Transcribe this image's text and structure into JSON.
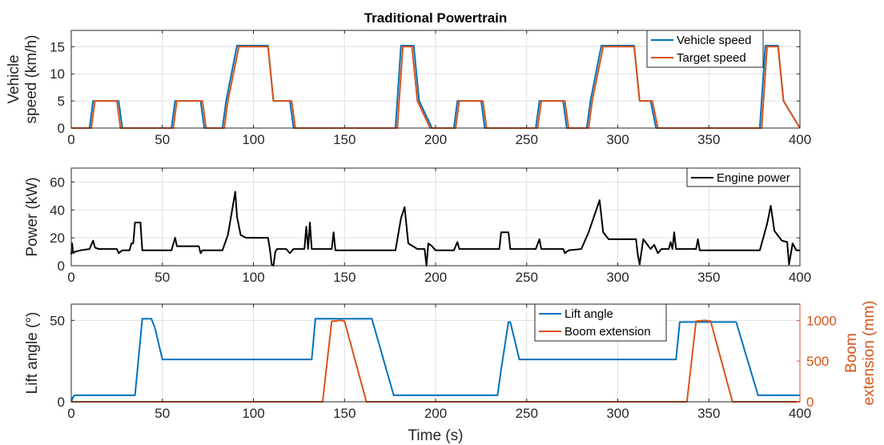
{
  "chart_data": [
    {
      "type": "line",
      "title": "Traditional Powertrain",
      "xlabel": "",
      "ylabel": "Vehicle speed (km/h)",
      "ylabel_lines": [
        "Vehicle",
        "speed (km/h)"
      ],
      "xlim": [
        0,
        400
      ],
      "ylim": [
        0,
        18
      ],
      "xticks": [
        0,
        50,
        100,
        150,
        200,
        250,
        300,
        350,
        400
      ],
      "yticks": [
        0,
        5,
        10,
        15
      ],
      "grid": true,
      "legend_position": "top-right",
      "series": [
        {
          "name": "Vehicle speed",
          "color": "#0072BD",
          "x": [
            0,
            10,
            12,
            26,
            28,
            55,
            57,
            71,
            73,
            83,
            85,
            91,
            108,
            111,
            120,
            122,
            178,
            181,
            188,
            191,
            198,
            210,
            212,
            225,
            227,
            255,
            257,
            270,
            272,
            283,
            285,
            291,
            309,
            312,
            318,
            321,
            378,
            381,
            388,
            391,
            400
          ],
          "y": [
            0,
            0,
            5,
            5,
            0,
            0,
            5,
            5,
            0,
            0,
            5,
            15.2,
            15.2,
            5,
            5,
            0,
            0,
            15.2,
            15.2,
            5,
            0,
            0,
            5,
            5,
            0,
            0,
            5,
            5,
            0,
            0,
            5,
            15.2,
            15.2,
            5,
            5,
            0,
            0,
            15.2,
            15.2,
            5,
            0
          ]
        },
        {
          "name": "Target speed",
          "color": "#D95319",
          "x": [
            0,
            11,
            13,
            25,
            27,
            56,
            58,
            72,
            74,
            84,
            86,
            92,
            108,
            111,
            121,
            123,
            179,
            182,
            187,
            190,
            197,
            211,
            213,
            226,
            228,
            256,
            258,
            271,
            273,
            284,
            286,
            292,
            309,
            312,
            319,
            322,
            379,
            382,
            388,
            391,
            400
          ],
          "y": [
            0,
            0,
            5,
            5,
            0,
            0,
            5,
            5,
            0,
            0,
            5,
            15,
            15,
            5,
            5,
            0,
            0,
            15,
            15,
            5,
            0,
            0,
            5,
            5,
            0,
            0,
            5,
            5,
            0,
            0,
            5,
            15,
            15,
            5,
            5,
            0,
            0,
            15,
            15,
            5,
            0
          ]
        }
      ]
    },
    {
      "type": "line",
      "title": "",
      "xlabel": "",
      "ylabel": "Power (kW)",
      "xlim": [
        0,
        400
      ],
      "ylim": [
        0,
        70
      ],
      "xticks": [
        0,
        50,
        100,
        150,
        200,
        250,
        300,
        350,
        400
      ],
      "yticks": [
        0,
        20,
        40,
        60
      ],
      "grid": true,
      "legend_position": "top-right",
      "series": [
        {
          "name": "Engine power",
          "color": "#000000",
          "x": [
            0,
            0.5,
            1,
            2,
            5,
            10,
            12,
            13,
            15,
            25,
            26,
            28,
            32,
            33,
            34,
            35,
            38,
            39,
            40,
            55,
            57,
            58,
            60,
            70,
            71,
            72,
            74,
            83,
            86,
            90,
            91,
            93,
            96,
            100,
            108,
            109,
            110,
            111,
            112,
            113,
            118,
            120,
            122,
            128,
            129,
            130,
            131,
            132,
            133,
            135,
            143,
            144,
            145,
            146,
            147,
            160,
            175,
            178,
            181,
            183,
            185,
            190,
            194,
            195,
            196,
            198,
            200,
            205,
            210,
            212,
            213,
            215,
            220,
            230,
            235,
            236,
            240,
            241,
            243,
            250,
            255,
            257,
            258,
            260,
            270,
            271,
            273,
            280,
            284,
            290,
            292,
            295,
            300,
            309,
            310,
            311,
            312,
            314,
            318,
            320,
            322,
            324,
            328,
            329,
            330,
            331,
            332,
            333,
            335,
            343,
            344,
            345,
            346,
            347,
            360,
            375,
            378,
            382,
            384,
            386,
            390,
            393,
            394,
            396,
            398,
            400
          ],
          "y": [
            8,
            16,
            9,
            10,
            11,
            12,
            18,
            13,
            12,
            12,
            9,
            11,
            11,
            16,
            16,
            31,
            31,
            11,
            11,
            11,
            20,
            14,
            14,
            14,
            9,
            11,
            11,
            11,
            22,
            53,
            35,
            22,
            20,
            20,
            20,
            12,
            1,
            0,
            10,
            12,
            12,
            9,
            12,
            12,
            28,
            12,
            31,
            12,
            12,
            12,
            12,
            24,
            11,
            11,
            11,
            11,
            11,
            11,
            34,
            42,
            16,
            12,
            12,
            0,
            16,
            14,
            11,
            11,
            11,
            17,
            12,
            12,
            12,
            12,
            12,
            24,
            24,
            12,
            12,
            12,
            12,
            19,
            12,
            12,
            12,
            9,
            11,
            12,
            24,
            47,
            24,
            19,
            19,
            19,
            19,
            8,
            1,
            19,
            12,
            15,
            9,
            12,
            12,
            17,
            12,
            24,
            12,
            12,
            12,
            12,
            19,
            11,
            11,
            11,
            11,
            11,
            11,
            30,
            43,
            25,
            18,
            17,
            1,
            16,
            11,
            11
          ]
        }
      ]
    },
    {
      "type": "line",
      "title": "",
      "xlabel": "Time (s)",
      "ylabel": "Lift angle (°)",
      "ylabel_right": "Boom extension (mm)",
      "ylabel_right_lines": [
        "Boom",
        "extension (mm)"
      ],
      "xlim": [
        0,
        400
      ],
      "ylim": [
        0,
        60
      ],
      "ylim_right": [
        0,
        1200
      ],
      "xticks": [
        0,
        50,
        100,
        150,
        200,
        250,
        300,
        350,
        400
      ],
      "yticks": [
        0,
        50
      ],
      "yticks_right": [
        0,
        500,
        1000
      ],
      "grid": true,
      "legend_position": "top-center",
      "series": [
        {
          "name": "Lift angle",
          "axis": "left",
          "color": "#0072BD",
          "x": [
            0,
            1,
            2,
            3,
            35,
            39,
            44,
            46,
            50,
            132,
            134,
            165,
            177,
            234,
            236,
            240,
            241,
            246,
            332,
            334,
            365,
            377,
            400
          ],
          "y": [
            0,
            3,
            4,
            4,
            4,
            51,
            51,
            45,
            26,
            26,
            51,
            51,
            4,
            4,
            20,
            49,
            49,
            26,
            26,
            49,
            49,
            4,
            4
          ]
        },
        {
          "name": "Boom extension",
          "axis": "right",
          "color": "#D95319",
          "x": [
            0,
            138,
            143,
            148,
            150,
            162,
            163,
            338,
            343,
            348,
            351,
            363,
            364,
            400
          ],
          "y": [
            0,
            0,
            990,
            1000,
            990,
            0,
            0,
            0,
            990,
            1000,
            990,
            0,
            0,
            0
          ]
        }
      ]
    }
  ]
}
